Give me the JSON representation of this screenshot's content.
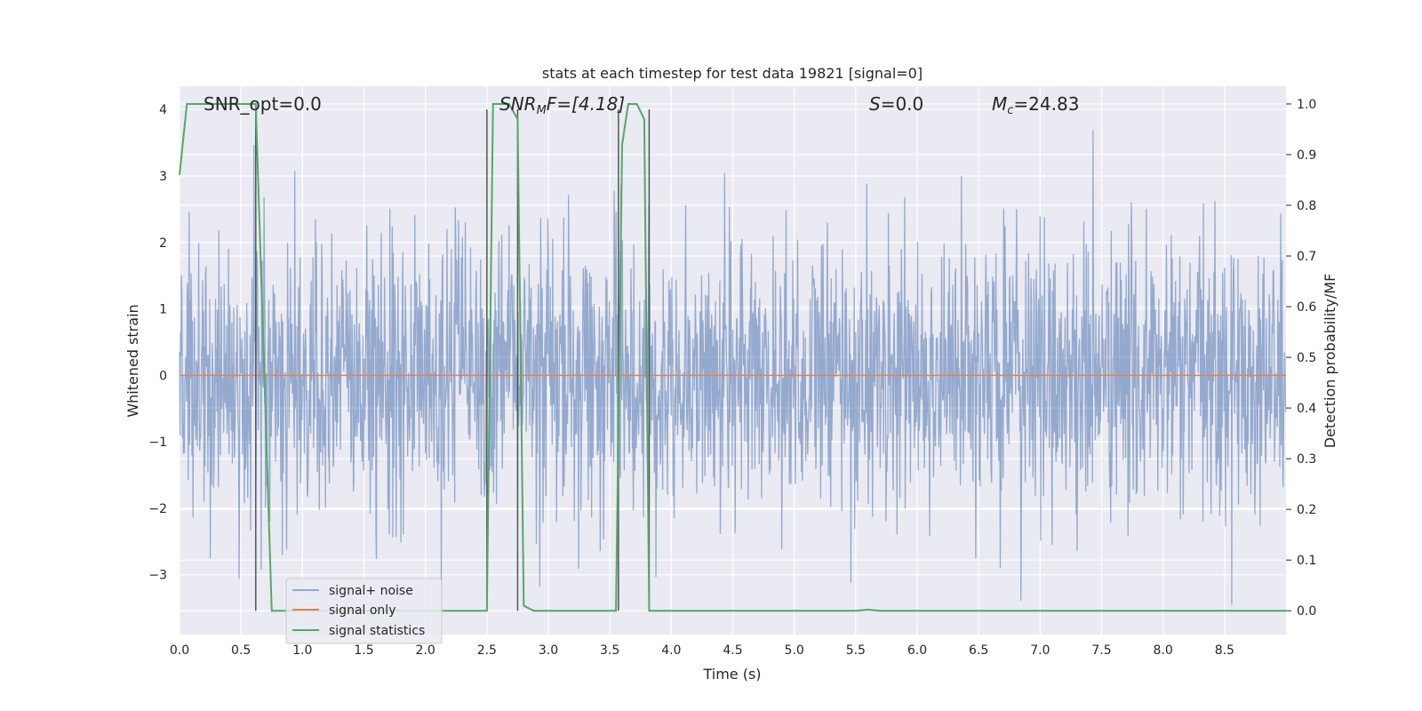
{
  "chart_data": {
    "type": "line",
    "title": "stats at each timestep for test data 19821 [signal=0]",
    "xlabel": "Time (s)",
    "ylabel_left": "Whitened strain",
    "ylabel_right": "Detection probability/MF",
    "xlim": [
      0.0,
      9.0
    ],
    "ylim_left": [
      -3.9,
      4.35
    ],
    "ylim_right": [
      -0.047,
      1.035
    ],
    "x_ticks": [
      0.0,
      0.5,
      1.0,
      1.5,
      2.0,
      2.5,
      3.0,
      3.5,
      4.0,
      4.5,
      5.0,
      5.5,
      6.0,
      6.5,
      7.0,
      7.5,
      8.0,
      8.5
    ],
    "x_tick_labels": [
      "0.0",
      "0.5",
      "1.0",
      "1.5",
      "2.0",
      "2.5",
      "3.0",
      "3.5",
      "4.0",
      "4.5",
      "5.0",
      "5.5",
      "6.0",
      "6.5",
      "7.0",
      "7.5",
      "8.0",
      "8.5"
    ],
    "y_left_ticks": [
      -3,
      -2,
      -1,
      0,
      1,
      2,
      3,
      4
    ],
    "y_left_tick_labels": [
      "−3",
      "−2",
      "−1",
      "0",
      "1",
      "2",
      "3",
      "4"
    ],
    "y_right_ticks": [
      0.0,
      0.1,
      0.2,
      0.3,
      0.4,
      0.5,
      0.6,
      0.7,
      0.8,
      0.9,
      1.0
    ],
    "y_right_tick_labels": [
      "0.0",
      "0.1",
      "0.2",
      "0.3",
      "0.4",
      "0.5",
      "0.6",
      "0.7",
      "0.8",
      "0.9",
      "1.0"
    ],
    "grid": true,
    "legend_position": "lower-left",
    "annotations": {
      "snr_opt": "SNR_opt=0.0",
      "snr_mf_main": "SNR",
      "snr_mf_sub": "M",
      "snr_mf_rest": "F=[4.18]",
      "s_main": "S",
      "s_rest": "=0.0",
      "mc_main": "M",
      "mc_sub": "c",
      "mc_rest": "=24.83"
    },
    "series": [
      {
        "name": "signal+ noise",
        "color": "#4c72b0",
        "axis": "left",
        "description_of_values": "whitened strain noise samples, approximately Gaussian with sigma 1, range about -3.4 to 4.0",
        "sample_rate_hz": 256
      },
      {
        "name": "signal only",
        "color": "#dd8452",
        "axis": "left",
        "x": [
          0.0,
          9.0
        ],
        "y": [
          0.0,
          0.0
        ]
      },
      {
        "name": "signal statistics",
        "color": "#55a868",
        "axis": "right",
        "x": [
          0.0,
          0.06,
          0.12,
          0.5,
          0.6,
          0.62,
          0.75,
          0.85,
          2.5,
          2.55,
          2.62,
          2.68,
          2.75,
          2.8,
          2.88,
          3.55,
          3.6,
          3.65,
          3.72,
          3.78,
          3.82,
          3.87,
          3.92,
          4.0,
          5.5,
          5.6,
          5.7,
          6.7,
          9.0
        ],
        "y": [
          0.86,
          1.0,
          1.0,
          1.0,
          1.0,
          1.0,
          0.0,
          0.0,
          0.0,
          1.0,
          1.0,
          1.0,
          0.97,
          0.01,
          0.0,
          0.0,
          0.92,
          1.0,
          1.0,
          0.97,
          0.0,
          0.0,
          0.0,
          0.0,
          0.0,
          0.002,
          0.0,
          0.0,
          0.0
        ]
      }
    ],
    "vertical_markers_x": [
      0.62,
      2.5,
      2.75,
      3.57,
      3.82
    ]
  }
}
